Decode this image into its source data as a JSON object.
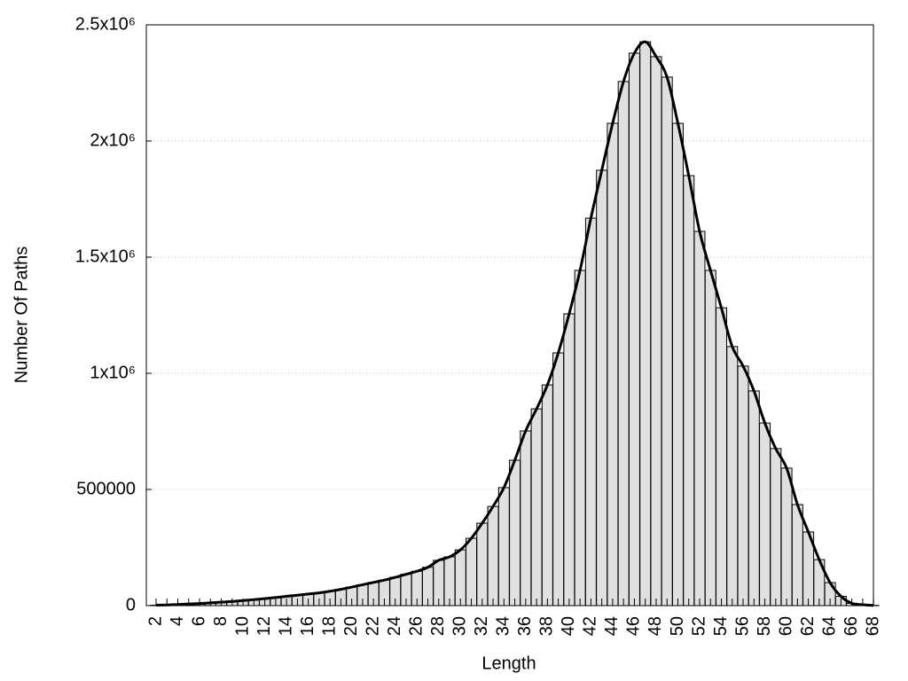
{
  "chart_data": {
    "type": "bar",
    "x_label": "Length",
    "y_label": "Number Of Paths",
    "categories": [
      "2",
      null,
      "4",
      null,
      "6",
      null,
      "8",
      null,
      "10",
      null,
      "12",
      null,
      "14",
      null,
      "16",
      null,
      "18",
      null,
      "20",
      null,
      "22",
      null,
      "24",
      null,
      "26",
      null,
      "28",
      null,
      "30",
      null,
      "32",
      null,
      "34",
      null,
      "36",
      null,
      "38",
      null,
      "40",
      null,
      "42",
      null,
      "44",
      null,
      "46",
      null,
      "48",
      null,
      "50",
      null,
      "52",
      null,
      "54",
      null,
      "56",
      null,
      "58",
      null,
      "60",
      null,
      "62",
      null,
      "64",
      null,
      "66",
      null,
      "68"
    ],
    "values": [
      2000,
      3000,
      5000,
      7000,
      9000,
      12000,
      15000,
      18000,
      22000,
      26000,
      30000,
      35000,
      40000,
      45000,
      50000,
      55000,
      62000,
      70000,
      80000,
      90000,
      100000,
      110000,
      122000,
      135000,
      148000,
      165000,
      195000,
      210000,
      240000,
      290000,
      355000,
      427000,
      508000,
      626000,
      752000,
      847000,
      950000,
      1088000,
      1256000,
      1443000,
      1668000,
      1874000,
      2076000,
      2256000,
      2378000,
      2427000,
      2363000,
      2275000,
      2076000,
      1851000,
      1611000,
      1443000,
      1282000,
      1115000,
      1031000,
      924000,
      786000,
      676000,
      592000,
      435000,
      317000,
      198000,
      99000,
      40000,
      10000,
      4000,
      1000
    ],
    "color": "#e0e0e0",
    "line_color": "#000000",
    "ylim": [
      0,
      2500000
    ],
    "yticks": [
      0,
      500000,
      {
        "value": 1000000,
        "label": "1x10⁶"
      },
      {
        "value": 1500000,
        "label": "1.5x10⁶"
      },
      {
        "value": 2000000,
        "label": "2x10⁶"
      },
      {
        "value": 2500000,
        "label": "2.5x10⁶"
      }
    ],
    "grid": true
  }
}
